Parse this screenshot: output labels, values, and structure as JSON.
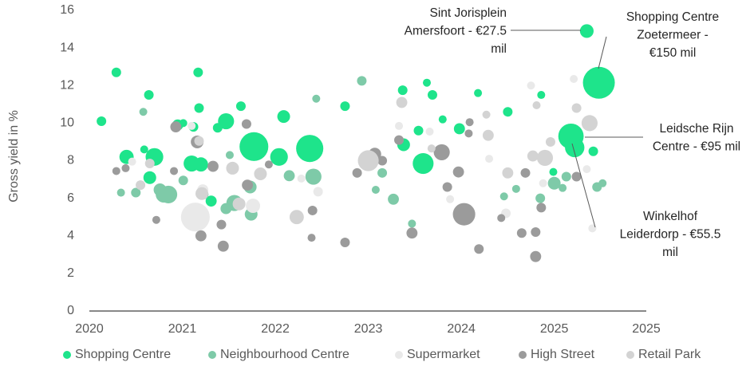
{
  "chart_data": {
    "type": "bubble",
    "y_label": "Gross yield in %",
    "xlim": [
      2020,
      2025.99
    ],
    "xticks": [
      2020,
      2021,
      2022,
      2023,
      2024,
      2025,
      {
        "value": 2025.99,
        "label": "2025"
      }
    ],
    "ylim": [
      0,
      16
    ],
    "yticks": [
      0,
      2,
      4,
      6,
      8,
      10,
      12,
      14,
      16
    ],
    "legend": "bottom",
    "series": [
      {
        "name": "Shopping Centre",
        "color": "#1ee48b",
        "x": [
          2020.13,
          2020.29,
          2020.4,
          2020.64,
          2020.59,
          2020.7,
          2020.65,
          2020.95,
          2021.01,
          2021.1,
          2021.17,
          2021.18,
          2021.12,
          2021.2,
          2021.31,
          2021.38,
          2021.47,
          2021.63,
          2021.77,
          2022.04,
          2022.09,
          2022.37,
          2022.75,
          2023.37,
          2023.38,
          2023.54,
          2023.59,
          2023.63,
          2023.69,
          2023.8,
          2023.98,
          2024.18,
          2024.5,
          2024.86,
          2024.99,
          2025.18,
          2025.22,
          2025.35,
          2025.42,
          2025.48
        ],
        "values": [
          10.1,
          12.7,
          8.2,
          11.5,
          8.6,
          8.2,
          7.1,
          9.9,
          10.0,
          7.85,
          12.7,
          10.8,
          9.8,
          7.8,
          5.85,
          9.75,
          10.1,
          10.9,
          8.75,
          8.2,
          10.35,
          8.65,
          10.9,
          11.75,
          8.85,
          9.6,
          7.85,
          12.15,
          11.5,
          10.2,
          9.7,
          11.6,
          10.6,
          11.5,
          7.4,
          9.3,
          8.7,
          14.9,
          8.5,
          12.15
        ],
        "sizes": [
          13.5,
          13.5,
          30,
          13.5,
          9.4,
          46,
          24,
          18,
          9.4,
          38,
          13.5,
          13.5,
          13.5,
          30,
          18,
          13.5,
          38,
          13.5,
          122,
          46,
          24,
          109,
          13.5,
          13.5,
          24,
          13.5,
          64,
          9.4,
          13.5,
          9.4,
          18,
          9.4,
          13.5,
          9.4,
          9.4,
          95,
          55.5,
          27.5,
          13.5,
          150
        ]
      },
      {
        "name": "Neighbourhood Centre",
        "color": "#7ecaa8",
        "x": [
          2020.34,
          2020.5,
          2020.58,
          2020.76,
          2020.8,
          2020.85,
          2021.01,
          2021.23,
          2021.47,
          2021.51,
          2021.56,
          2021.73,
          2021.74,
          2022.44,
          2022.15,
          2022.41,
          2022.93,
          2023.08,
          2023.15,
          2023.27,
          2023.47,
          2024.46,
          2024.59,
          2024.85,
          2025.0,
          2025.09,
          2025.13,
          2025.46,
          2025.52
        ],
        "values": [
          6.3,
          6.3,
          10.6,
          6.45,
          6.2,
          6.2,
          6.95,
          6.2,
          5.45,
          8.3,
          5.75,
          6.6,
          5.15,
          11.3,
          7.2,
          7.15,
          12.25,
          6.45,
          7.35,
          5.95,
          4.65,
          6.1,
          6.5,
          6.0,
          6.8,
          6.55,
          7.15,
          6.6,
          6.8
        ],
        "sizes": [
          9.4,
          13.5,
          9.4,
          24,
          38,
          46,
          13.5,
          13.5,
          18,
          9.4,
          38,
          24,
          24,
          9.4,
          18,
          38,
          13.5,
          9.4,
          13.5,
          18,
          9.4,
          9.4,
          9.4,
          13.5,
          24,
          9.4,
          13.5,
          13.5,
          9.4
        ]
      },
      {
        "name": "Supermarket",
        "color": "#e9e9e9",
        "x": [
          2020.46,
          2021.1,
          2021.22,
          2021.14,
          2021.76,
          2022.28,
          2022.46,
          2023.33,
          2023.66,
          2023.88,
          2024.3,
          2024.48,
          2024.75,
          2025.21,
          2024.88,
          2025.35,
          2025.41
        ],
        "values": [
          7.95,
          9.85,
          6.45,
          5.0,
          5.6,
          7.05,
          6.35,
          9.85,
          9.55,
          5.95,
          8.1,
          5.2,
          12.0,
          12.35,
          6.8,
          7.55,
          4.4
        ],
        "sizes": [
          9.4,
          9.4,
          18,
          122,
          30,
          9.4,
          13.5,
          9.4,
          9.4,
          9.4,
          9.4,
          13.5,
          9.4,
          9.4,
          9.4,
          9.4,
          9.4
        ]
      },
      {
        "name": "High Street",
        "color": "#9b9b9b",
        "x": [
          2020.29,
          2020.39,
          2020.72,
          2020.91,
          2020.93,
          2021.16,
          2021.2,
          2021.33,
          2021.44,
          2021.42,
          2021.69,
          2021.7,
          2021.93,
          2022.39,
          2022.4,
          2022.75,
          2022.88,
          2023.07,
          2023.15,
          2023.33,
          2023.47,
          2023.79,
          2023.85,
          2023.97,
          2024.03,
          2024.08,
          2024.09,
          2024.19,
          2024.43,
          2024.65,
          2024.69,
          2024.8,
          2024.8,
          2024.86,
          2025.24
        ],
        "values": [
          7.45,
          7.6,
          4.85,
          7.45,
          9.8,
          9.0,
          4.0,
          7.7,
          3.45,
          4.6,
          9.95,
          6.7,
          7.8,
          3.9,
          5.35,
          3.65,
          7.35,
          8.35,
          8.0,
          9.1,
          4.15,
          8.45,
          6.6,
          7.4,
          5.15,
          9.45,
          10.05,
          3.3,
          4.95,
          4.15,
          7.35,
          2.9,
          4.2,
          5.5,
          7.15
        ],
        "sizes": [
          9.4,
          9.4,
          9.4,
          9.4,
          18,
          24,
          18,
          18,
          18,
          13.5,
          13.5,
          18,
          9.4,
          9.4,
          13.5,
          13.5,
          13.5,
          24,
          13.5,
          13.5,
          18,
          38,
          13.5,
          18,
          74,
          9.4,
          9.4,
          13.5,
          9.4,
          13.5,
          13.5,
          18,
          13.5,
          13.5,
          13.5
        ]
      },
      {
        "name": "Retail Park",
        "color": "#d3d3d3",
        "x": [
          2020.55,
          2020.65,
          2021.21,
          2021.18,
          2021.54,
          2021.61,
          2021.84,
          2022.23,
          2023.0,
          2023.36,
          2023.68,
          2024.29,
          2024.27,
          2024.5,
          2024.77,
          2024.81,
          2024.9,
          2024.96,
          2025.24,
          2025.38
        ],
        "values": [
          6.7,
          7.85,
          6.25,
          9.05,
          7.6,
          5.7,
          7.3,
          5.0,
          8.0,
          11.1,
          8.65,
          9.35,
          10.45,
          7.35,
          8.25,
          10.95,
          8.15,
          9.0,
          10.8,
          10.0
        ],
        "sizes": [
          13.5,
          13.5,
          24,
          13.5,
          24,
          24,
          24,
          30,
          64,
          18,
          9.4,
          18,
          9.4,
          18,
          18,
          9.4,
          38,
          13.5,
          13.5,
          38
        ]
      }
    ],
    "annotations": [
      {
        "lines": [
          "Sint Jorisplein",
          "Amersfoort - €27.5",
          "mil"
        ]
      },
      {
        "lines": [
          "Shopping Centre",
          "Zoetermeer -",
          "€150 mil"
        ]
      },
      {
        "lines": [
          "Leidsche Rijn",
          "Centre - €95 mil"
        ]
      },
      {
        "lines": [
          "Winkelhof",
          "Leiderdorp - €55.5",
          "mil"
        ]
      }
    ]
  }
}
